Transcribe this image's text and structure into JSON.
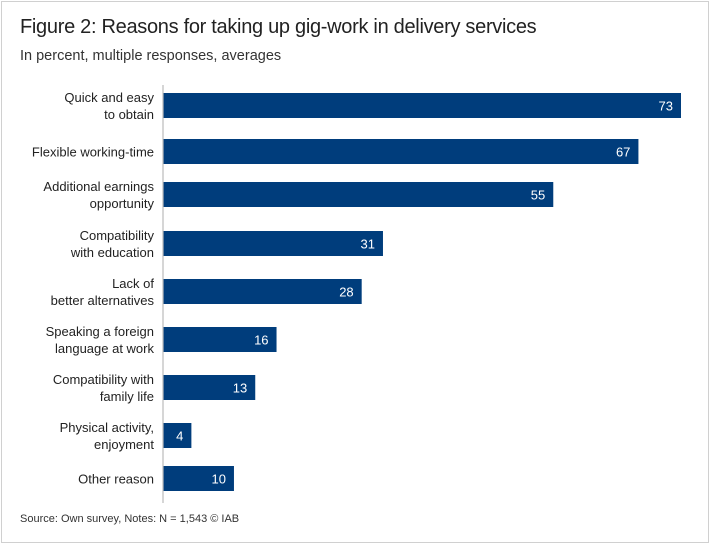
{
  "chart_data": {
    "type": "bar",
    "orientation": "horizontal",
    "title": "Figure 2: Reasons for taking up gig-work in delivery services",
    "subtitle": "In percent, multiple responses, averages",
    "categories": [
      [
        "Quick and easy",
        "to obtain"
      ],
      [
        "Flexible working-time"
      ],
      [
        "Additional earnings",
        "opportunity"
      ],
      [
        "Compatibility",
        "with education"
      ],
      [
        "Lack of",
        "better alternatives"
      ],
      [
        "Speaking a foreign",
        "language at work"
      ],
      [
        "Compatibility with",
        "family life"
      ],
      [
        "Physical activity,",
        "enjoyment"
      ],
      [
        "Other reason"
      ]
    ],
    "values": [
      73,
      67,
      55,
      31,
      28,
      16,
      13,
      4,
      10
    ],
    "xlim": [
      0,
      73
    ],
    "grid": false,
    "data_labels": true,
    "bar_color": "#003d7c",
    "source": "Source: Own survey, Notes: N = 1,543 © IAB"
  }
}
